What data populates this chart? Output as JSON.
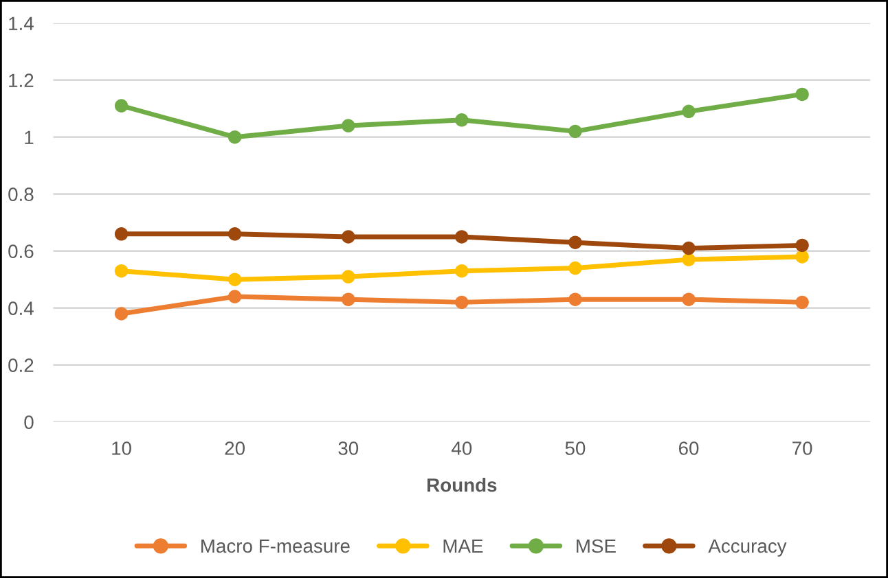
{
  "chart_data": {
    "type": "line",
    "xlabel": "Rounds",
    "categories": [
      "10",
      "20",
      "30",
      "40",
      "50",
      "60",
      "70"
    ],
    "series": [
      {
        "name": "Macro F-measure",
        "color": "#ed7d31",
        "values": [
          0.38,
          0.44,
          0.43,
          0.42,
          0.43,
          0.43,
          0.42
        ]
      },
      {
        "name": "MAE",
        "color": "#ffc000",
        "values": [
          0.53,
          0.5,
          0.51,
          0.53,
          0.54,
          0.57,
          0.58
        ]
      },
      {
        "name": "MSE",
        "color": "#70ad47",
        "values": [
          1.11,
          1.0,
          1.04,
          1.06,
          1.02,
          1.09,
          1.15
        ]
      },
      {
        "name": "Accuracy",
        "color": "#9e480e",
        "values": [
          0.66,
          0.66,
          0.65,
          0.65,
          0.63,
          0.61,
          0.62
        ]
      }
    ],
    "ylim": [
      0,
      1.4
    ],
    "yticks": [
      0,
      {
        "value": 0.2,
        "label": "0.2"
      },
      {
        "value": 0.4,
        "label": "0.4"
      },
      {
        "value": 0.6,
        "label": "0.6"
      },
      {
        "value": 0.8,
        "label": "0.8"
      },
      1,
      {
        "value": 1.2,
        "label": "1.2"
      },
      {
        "value": 1.4,
        "label": "1.4"
      }
    ],
    "grid": "y",
    "legend": "bottom",
    "marker": "circle",
    "line_style": "solid"
  }
}
